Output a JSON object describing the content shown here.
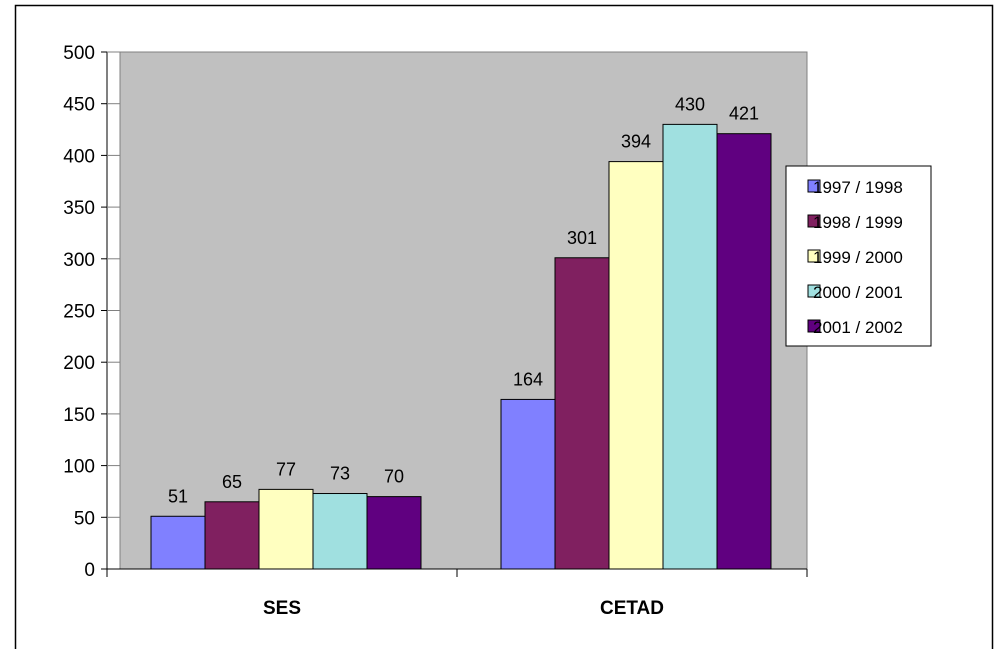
{
  "chart_data": {
    "type": "bar",
    "title": "",
    "xlabel": "",
    "ylabel": "",
    "categories": [
      "SES",
      "CETAD"
    ],
    "series": [
      {
        "name": "1997 / 1998",
        "values": [
          51,
          164
        ],
        "color": "#8080ff"
      },
      {
        "name": "1998 / 1999",
        "values": [
          65,
          301
        ],
        "color": "#802060"
      },
      {
        "name": "1999 / 2000",
        "values": [
          77,
          394
        ],
        "color": "#ffffc0"
      },
      {
        "name": "2000 / 2001",
        "values": [
          73,
          430
        ],
        "color": "#a0e0e0"
      },
      {
        "name": "2001 / 2002",
        "values": [
          70,
          421
        ],
        "color": "#600080"
      }
    ],
    "ylim": [
      0,
      500
    ],
    "yticks": [
      0,
      50,
      100,
      150,
      200,
      250,
      300,
      350,
      400,
      450,
      500
    ],
    "grid": false,
    "plot_background": "#c0c0c0",
    "legend_position": "right",
    "data_labels": true
  }
}
